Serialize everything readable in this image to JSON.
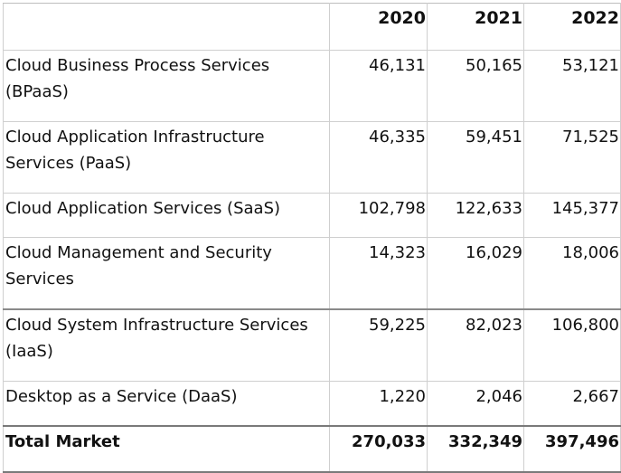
{
  "table": {
    "years": [
      "2020",
      "2021",
      "2022"
    ],
    "rows": [
      {
        "label": "Cloud Business Process Services (BPaaS)",
        "values": [
          "46,131",
          "50,165",
          "53,121"
        ]
      },
      {
        "label": "Cloud Application Infrastructure Services (PaaS)",
        "values": [
          "46,335",
          "59,451",
          "71,525"
        ]
      },
      {
        "label": "Cloud Application Services (SaaS)",
        "values": [
          "102,798",
          "122,633",
          "145,377"
        ]
      },
      {
        "label": "Cloud Management and Security Services",
        "values": [
          "14,323",
          "16,029",
          "18,006"
        ]
      },
      {
        "label": "Cloud System Infrastructure Services (IaaS)",
        "values": [
          "59,225",
          "82,023",
          "106,800"
        ]
      },
      {
        "label": "Desktop as a Service (DaaS)",
        "values": [
          "1,220",
          "2,046",
          "2,667"
        ]
      }
    ],
    "total": {
      "label": "Total Market",
      "values": [
        "270,033",
        "332,349",
        "397,496"
      ]
    }
  }
}
